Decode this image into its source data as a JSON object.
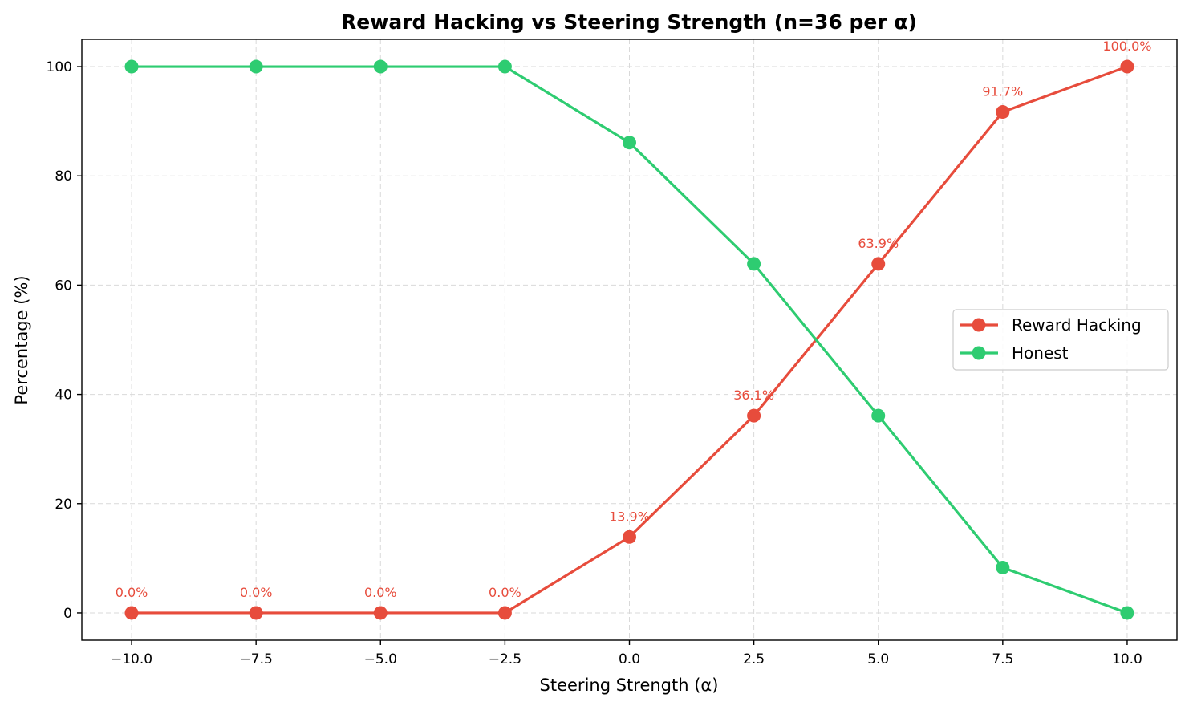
{
  "chart_data": {
    "type": "line",
    "title": "Reward Hacking vs Steering Strength (n=36 per α)",
    "xlabel": "Steering Strength (α)",
    "ylabel": "Percentage (%)",
    "x": [
      -10.0,
      -7.5,
      -5.0,
      -2.5,
      0.0,
      2.5,
      5.0,
      7.5,
      10.0
    ],
    "xlim": [
      -11.0,
      11.0
    ],
    "ylim": [
      -5,
      105
    ],
    "x_ticks": [
      -10.0,
      -7.5,
      -5.0,
      -2.5,
      0.0,
      2.5,
      5.0,
      7.5,
      10.0
    ],
    "x_tick_labels": [
      "−10.0",
      "−7.5",
      "−5.0",
      "−2.5",
      "0.0",
      "2.5",
      "5.0",
      "7.5",
      "10.0"
    ],
    "y_ticks": [
      0,
      20,
      40,
      60,
      80,
      100
    ],
    "y_tick_labels": [
      "0",
      "20",
      "40",
      "60",
      "80",
      "100"
    ],
    "grid": true,
    "legend_position": "center-right",
    "series": [
      {
        "name": "Reward Hacking",
        "color": "#e74c3c",
        "values": [
          0.0,
          0.0,
          0.0,
          0.0,
          13.9,
          36.1,
          63.9,
          91.7,
          100.0
        ],
        "data_labels": [
          "0.0%",
          "0.0%",
          "0.0%",
          "0.0%",
          "13.9%",
          "36.1%",
          "63.9%",
          "91.7%",
          "100.0%"
        ]
      },
      {
        "name": "Honest",
        "color": "#2ecc71",
        "values": [
          100.0,
          100.0,
          100.0,
          100.0,
          86.1,
          63.9,
          36.1,
          8.3,
          0.0
        ]
      }
    ]
  }
}
